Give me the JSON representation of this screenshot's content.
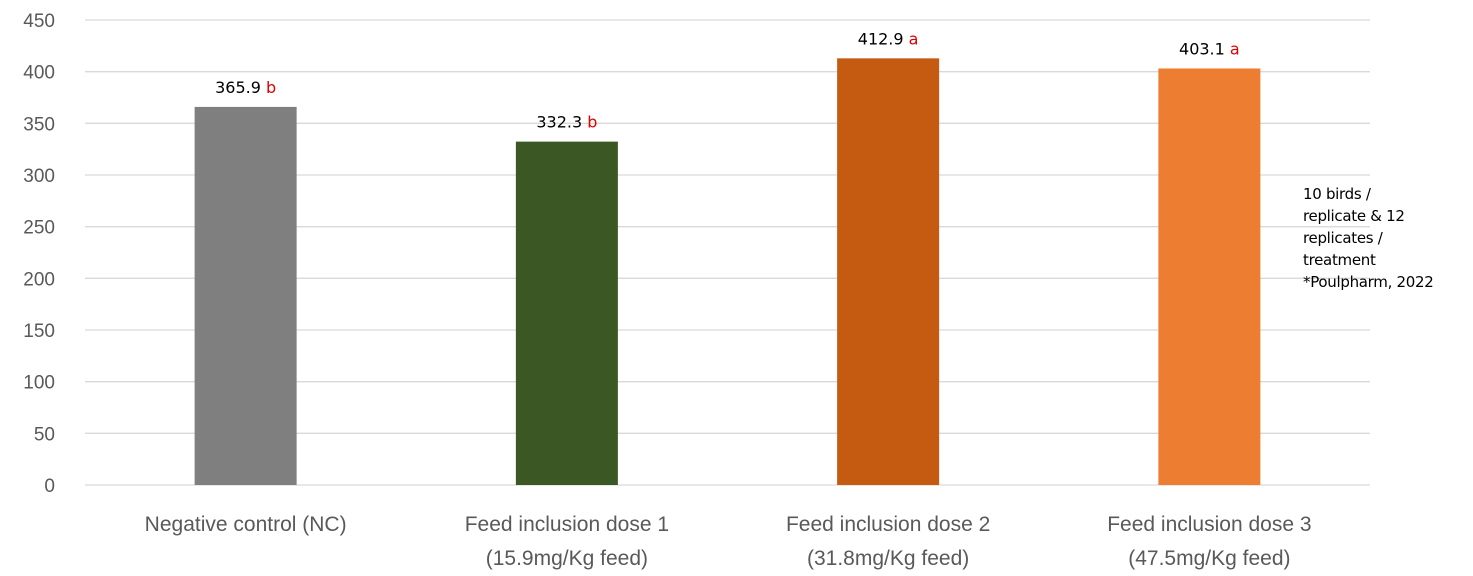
{
  "chart_data": {
    "type": "bar",
    "categories": [
      [
        "Negative control (NC)"
      ],
      [
        "Feed inclusion dose 1",
        "(15.9mg/Kg feed)"
      ],
      [
        "Feed inclusion dose 2",
        "(31.8mg/Kg feed)"
      ],
      [
        "Feed inclusion dose 3",
        "(47.5mg/Kg feed)"
      ]
    ],
    "values": [
      365.9,
      332.3,
      412.9,
      403.1
    ],
    "value_labels": [
      "365.9",
      "332.3",
      "412.9",
      "403.1"
    ],
    "significance_letters": [
      "b",
      "b",
      "a",
      "a"
    ],
    "colors": [
      "#7f7f7f",
      "#3b5723",
      "#c55a11",
      "#ed7d31"
    ],
    "significance_color": "#e00000",
    "ylim": [
      0,
      450
    ],
    "yticks": [
      0,
      50,
      100,
      150,
      200,
      250,
      300,
      350,
      400,
      450
    ],
    "grid": true,
    "title": "",
    "xlabel": "",
    "ylabel": ""
  },
  "note": {
    "lines": [
      "10 birds /",
      "replicate & 12",
      "replicates /",
      "treatment",
      "*Poulpharm, 2022"
    ]
  }
}
